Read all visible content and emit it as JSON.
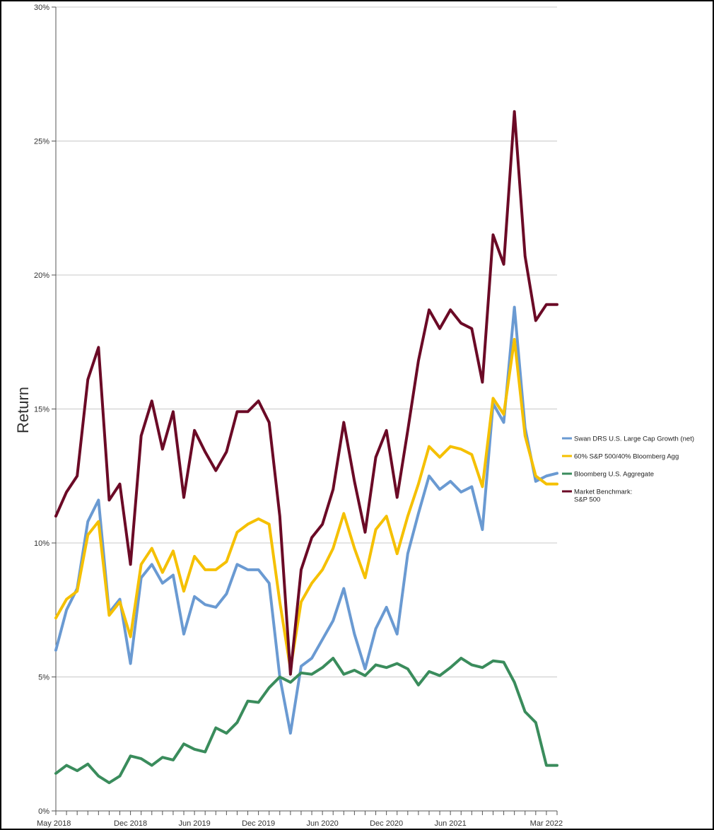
{
  "chart_data": {
    "type": "line",
    "title": "",
    "xlabel": "",
    "ylabel": "Return",
    "ylim": [
      0,
      30
    ],
    "yticks": [
      "0%",
      "5%",
      "10%",
      "15%",
      "20%",
      "25%",
      "30%"
    ],
    "xtick_labels": [
      "May 2018",
      "Dec 2018",
      "Jun 2019",
      "Dec 2019",
      "Jun 2020",
      "Dec 2020",
      "Jun 2021",
      "Mar 2022"
    ],
    "x": [
      "2018-05",
      "2018-06",
      "2018-07",
      "2018-08",
      "2018-09",
      "2018-10",
      "2018-11",
      "2018-12",
      "2019-01",
      "2019-02",
      "2019-03",
      "2019-04",
      "2019-05",
      "2019-06",
      "2019-07",
      "2019-08",
      "2019-09",
      "2019-10",
      "2019-11",
      "2019-12",
      "2020-01",
      "2020-02",
      "2020-03",
      "2020-04",
      "2020-05",
      "2020-06",
      "2020-07",
      "2020-08",
      "2020-09",
      "2020-10",
      "2020-11",
      "2020-12",
      "2021-01",
      "2021-02",
      "2021-03",
      "2021-04",
      "2021-05",
      "2021-06",
      "2021-07",
      "2021-08",
      "2021-09",
      "2021-10",
      "2021-11",
      "2021-12",
      "2022-01",
      "2022-02",
      "2022-03",
      "2022-04"
    ],
    "grid": true,
    "legend_position": "right",
    "series": [
      {
        "name": "Swan DRS U.S. Large Cap Growth (net)",
        "color": "#6a9ad2",
        "values": [
          6.0,
          7.5,
          8.3,
          10.8,
          11.6,
          7.4,
          7.9,
          5.5,
          8.7,
          9.2,
          8.5,
          8.8,
          6.6,
          8.0,
          7.7,
          7.6,
          8.1,
          9.2,
          9.0,
          9.0,
          8.5,
          5.0,
          2.9,
          5.4,
          5.7,
          6.4,
          7.1,
          8.3,
          6.6,
          5.3,
          6.8,
          7.6,
          6.6,
          9.6,
          11.1,
          12.5,
          12.0,
          12.3,
          11.9,
          12.1,
          10.5,
          15.2,
          14.5,
          18.8,
          14.3,
          12.3,
          12.5,
          12.6
        ]
      },
      {
        "name": "60% S&P 500/40% Bloomberg Agg",
        "color": "#f5c000",
        "values": [
          7.2,
          7.9,
          8.2,
          10.3,
          10.8,
          7.3,
          7.8,
          6.5,
          9.2,
          9.8,
          8.9,
          9.7,
          8.2,
          9.5,
          9.0,
          9.0,
          9.3,
          10.4,
          10.7,
          10.9,
          10.7,
          7.8,
          5.3,
          7.8,
          8.5,
          9.0,
          9.8,
          11.1,
          9.8,
          8.7,
          10.5,
          11.0,
          9.6,
          11.0,
          12.2,
          13.6,
          13.2,
          13.6,
          13.5,
          13.3,
          12.1,
          15.4,
          14.8,
          17.6,
          14.0,
          12.5,
          12.2,
          12.2
        ]
      },
      {
        "name": "Bloomberg U.S. Aggregate",
        "color": "#3a8c5c",
        "values": [
          1.4,
          1.7,
          1.5,
          1.75,
          1.3,
          1.05,
          1.3,
          2.05,
          1.95,
          1.7,
          2.0,
          1.9,
          2.5,
          2.3,
          2.2,
          3.1,
          2.9,
          3.3,
          4.1,
          4.05,
          4.6,
          5.0,
          4.8,
          5.15,
          5.1,
          5.35,
          5.7,
          5.1,
          5.25,
          5.05,
          5.45,
          5.35,
          5.5,
          5.3,
          4.7,
          5.2,
          5.05,
          5.35,
          5.7,
          5.45,
          5.35,
          5.6,
          5.55,
          4.8,
          3.7,
          3.3,
          1.7,
          1.7
        ]
      },
      {
        "name": "Market Benchmark: S&P 500",
        "legend_lines": [
          "Market Benchmark:",
          "S&P 500"
        ],
        "color": "#6b0a26",
        "values": [
          11.0,
          11.9,
          12.5,
          16.1,
          17.3,
          11.6,
          12.2,
          9.2,
          14.0,
          15.3,
          13.5,
          14.9,
          11.7,
          14.2,
          13.4,
          12.7,
          13.4,
          14.9,
          14.9,
          15.3,
          14.5,
          11.0,
          5.1,
          9.0,
          10.2,
          10.7,
          12.0,
          14.5,
          12.3,
          10.4,
          13.2,
          14.2,
          11.7,
          14.2,
          16.8,
          18.7,
          18.0,
          18.7,
          18.2,
          18.0,
          16.0,
          21.5,
          20.4,
          26.1,
          20.7,
          18.3,
          18.9,
          18.9
        ]
      }
    ]
  }
}
